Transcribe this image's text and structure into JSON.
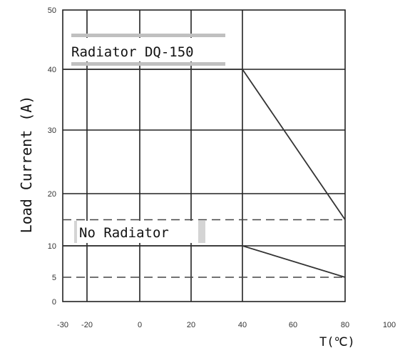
{
  "chart_data": {
    "type": "line",
    "xlabel": "T(℃)",
    "ylabel": "Load Current  (A)",
    "xlim": [
      -30,
      100
    ],
    "ylim": [
      0,
      50
    ],
    "x_ticks": [
      -30,
      -20,
      0,
      20,
      40,
      60,
      80,
      100
    ],
    "y_ticks": [
      0,
      5,
      10,
      20,
      30,
      40,
      50
    ],
    "grid": true,
    "series": [
      {
        "name": "Radiator DQ-150",
        "x": [
          -30,
          40,
          80
        ],
        "y": [
          40,
          40,
          15
        ]
      },
      {
        "name": "No Radiator",
        "x": [
          -30,
          40,
          80
        ],
        "y": [
          10,
          10,
          5
        ]
      }
    ],
    "reference_lines": [
      {
        "y": 15,
        "x": [
          -30,
          80
        ],
        "style": "dashed"
      },
      {
        "y": 5,
        "x": [
          -30,
          80
        ],
        "style": "dashed"
      }
    ],
    "annotations": [
      "Radiator DQ-150",
      "No Radiator"
    ],
    "colors": {
      "line": "#333333",
      "grid": "#222222",
      "label_bar": "#c0c0c0"
    }
  }
}
